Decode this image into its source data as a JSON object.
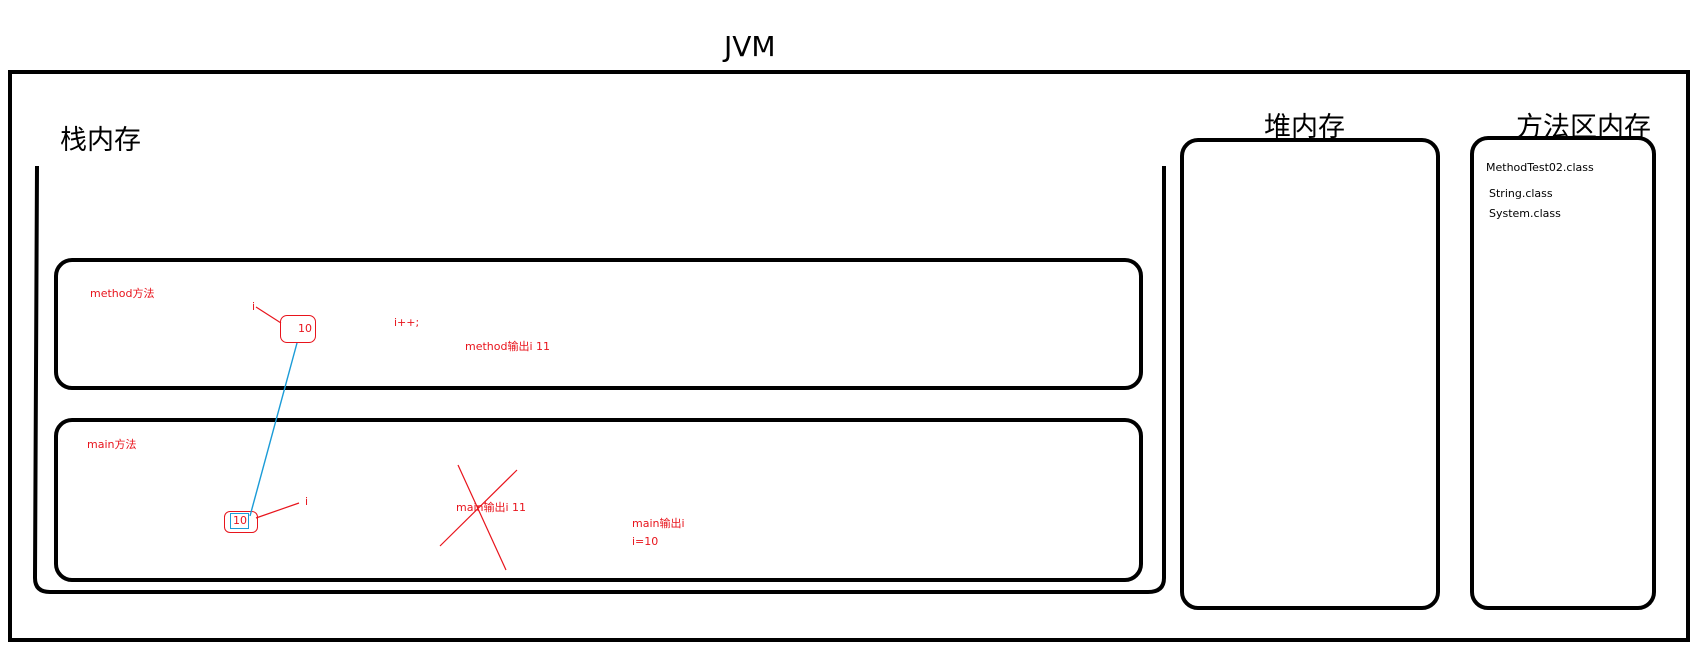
{
  "title": "JVM",
  "stack": {
    "label": "栈内存",
    "method_frame": {
      "label": "method方法",
      "var_name": "i",
      "value": "10",
      "op": "i++;",
      "output": "method输出i 11"
    },
    "main_frame": {
      "label": "main方法",
      "var_name": "i",
      "value": "10",
      "crossed_output": "main输出i 11",
      "output": "main输出i",
      "result": "i=10"
    }
  },
  "heap": {
    "label": "堆内存"
  },
  "method_area": {
    "label": "方法区内存",
    "items": [
      "MethodTest02.class",
      "String.class",
      "System.class"
    ]
  },
  "colors": {
    "annotation": "#e8141c",
    "link": "#1a9bd7",
    "frame": "#000000"
  }
}
